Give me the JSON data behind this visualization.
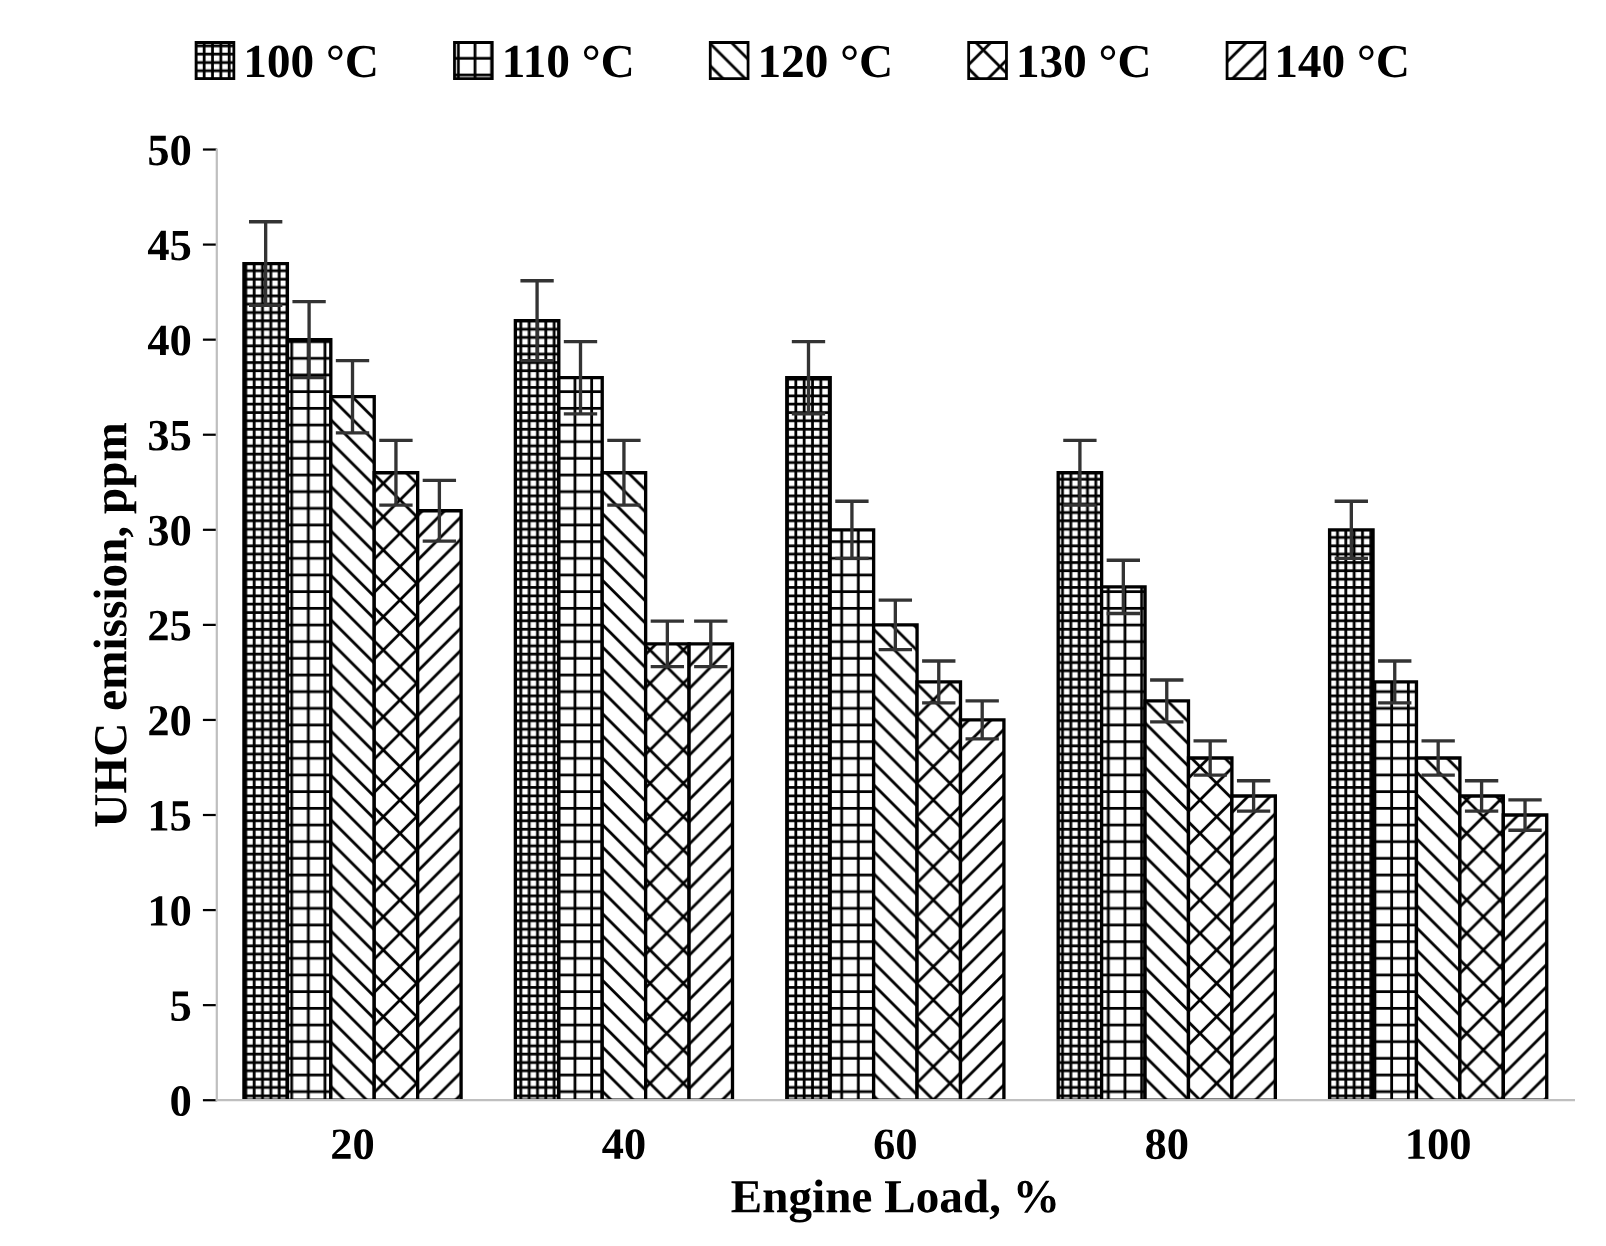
{
  "chart_data": {
    "type": "bar",
    "xlabel": "Engine Load, %",
    "ylabel": "UHC emission, ppm",
    "categories": [
      "20",
      "40",
      "60",
      "80",
      "100"
    ],
    "series": [
      {
        "name": "100 °C",
        "color": "#000000",
        "values": [
          44,
          41,
          38,
          33,
          30
        ],
        "errors": [
          2.2,
          2.1,
          1.9,
          1.7,
          1.5
        ]
      },
      {
        "name": "110 °C",
        "color": "#000000",
        "values": [
          40,
          38,
          30,
          27,
          22
        ],
        "errors": [
          2.0,
          1.9,
          1.5,
          1.4,
          1.1
        ]
      },
      {
        "name": "120 °C",
        "color": "#000000",
        "values": [
          37,
          33,
          25,
          21,
          18
        ],
        "errors": [
          1.9,
          1.7,
          1.3,
          1.1,
          0.9
        ]
      },
      {
        "name": "130 °C",
        "color": "#000000",
        "values": [
          33,
          24,
          22,
          18,
          16
        ],
        "errors": [
          1.7,
          1.2,
          1.1,
          0.9,
          0.8
        ]
      },
      {
        "name": "140 °C",
        "color": "#000000",
        "values": [
          31,
          24,
          20,
          16,
          15
        ],
        "errors": [
          1.6,
          1.2,
          1.0,
          0.8,
          0.8
        ]
      }
    ],
    "ylim": [
      0,
      50
    ],
    "yticks": [
      0,
      5,
      10,
      15,
      20,
      25,
      30,
      35,
      40,
      45,
      50
    ],
    "grid": false,
    "legend": "top"
  }
}
